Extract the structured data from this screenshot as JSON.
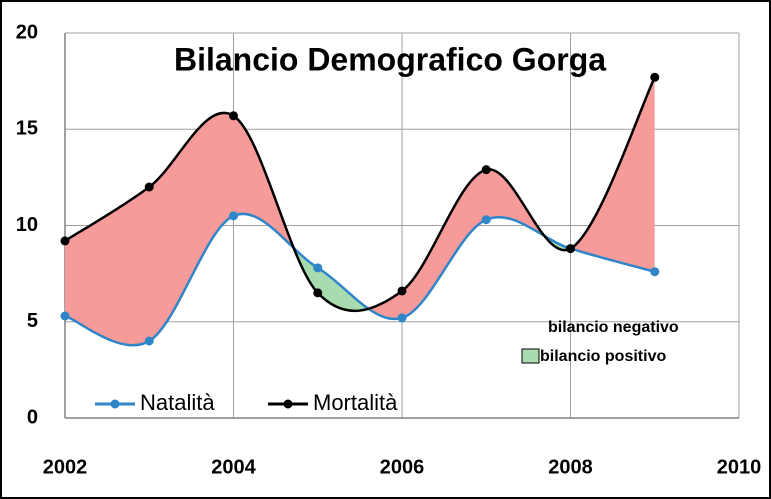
{
  "chart_data": {
    "type": "line",
    "title": "Bilancio Demografico Gorga",
    "x": [
      2002,
      2003,
      2004,
      2005,
      2006,
      2007,
      2008,
      2009
    ],
    "series": [
      {
        "name": "Natalità",
        "color": "#2e86c8",
        "values": [
          5.3,
          4.0,
          10.5,
          7.8,
          5.2,
          10.3,
          8.8,
          7.6
        ]
      },
      {
        "name": "Mortalità",
        "color": "#000000",
        "values": [
          9.2,
          12.0,
          15.7,
          6.5,
          6.6,
          12.9,
          8.8,
          17.7
        ]
      }
    ],
    "balance_legend": [
      {
        "name": "bilancio negativo",
        "fill": "#f79a9a"
      },
      {
        "name": "bilancio positivo",
        "fill": "#a8dcb0"
      }
    ],
    "xlim": [
      2002,
      2010
    ],
    "xticks": [
      2002,
      2004,
      2006,
      2008,
      2010
    ],
    "ylim": [
      0,
      20
    ],
    "yticks": [
      0,
      5,
      10,
      15,
      20
    ],
    "grid": true,
    "smooth": true
  }
}
